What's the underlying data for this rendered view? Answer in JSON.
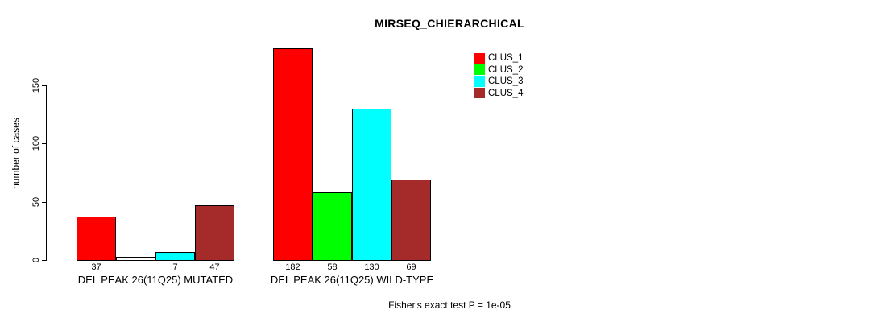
{
  "chart_data": {
    "type": "bar",
    "title": "MIRSEQ_CHIERARCHICAL",
    "ylabel": "number of cases",
    "xlabel": "",
    "ylim": [
      0,
      185
    ],
    "y_ticks": [
      0,
      50,
      100,
      150
    ],
    "grid": false,
    "legend_position": "top-right",
    "categories": [
      "DEL PEAK 26(11Q25) MUTATED",
      "DEL PEAK 26(11Q25) WILD-TYPE"
    ],
    "series": [
      {
        "name": "CLUS_1",
        "color": "#ff0000",
        "values": [
          37,
          182
        ]
      },
      {
        "name": "CLUS_2",
        "color": "#00ff00",
        "values": [
          0,
          58
        ]
      },
      {
        "name": "CLUS_3",
        "color": "#00ffff",
        "values": [
          7,
          130
        ]
      },
      {
        "name": "CLUS_4",
        "color": "#a52a2a",
        "values": [
          47,
          69
        ]
      }
    ],
    "bar_value_labels": [
      [
        "37",
        null,
        "7",
        "47"
      ],
      [
        "182",
        "58",
        "130",
        "69"
      ]
    ],
    "zero_values_unlabeled": true,
    "annotation": "Fisher's exact test P = 1e-05",
    "colors": {
      "bar_border": "#000000",
      "background": "#ffffff",
      "text": "#000000"
    }
  }
}
